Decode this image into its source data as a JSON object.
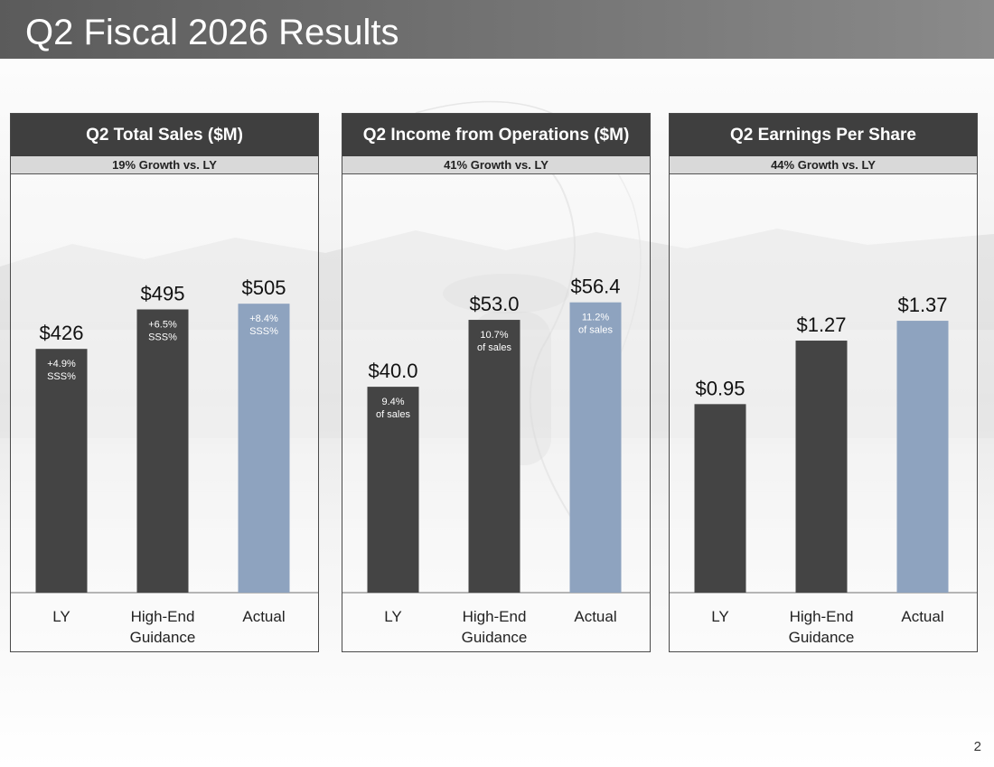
{
  "slide": {
    "title": "Q2 Fiscal 2026 Results",
    "page_number": "2"
  },
  "colors": {
    "dark_bar": "#444444",
    "actual_bar": "#8ea3bf",
    "header_bg": "#3f3f3f",
    "subheader_bg": "#d9d9d9"
  },
  "chart_data": [
    {
      "type": "bar",
      "title": "Q2 Total Sales ($M)",
      "subtitle": "19% Growth vs. LY",
      "categories": [
        [
          "LY"
        ],
        [
          "High-End",
          "Guidance"
        ],
        [
          "Actual"
        ]
      ],
      "values": [
        426,
        495,
        505
      ],
      "value_labels": [
        "$426",
        "$495",
        "$505"
      ],
      "bar_notes": [
        [
          "+4.9%",
          "SSS%"
        ],
        [
          "+6.5%",
          "SSS%"
        ],
        [
          "+8.4%",
          "SSS%"
        ]
      ],
      "highlight_index": 2,
      "ylim": [
        0,
        600
      ]
    },
    {
      "type": "bar",
      "title": "Q2 Income from Operations ($M)",
      "subtitle": "41% Growth vs. LY",
      "categories": [
        [
          "LY"
        ],
        [
          "High-End",
          "Guidance"
        ],
        [
          "Actual"
        ]
      ],
      "values": [
        40.0,
        53.0,
        56.4
      ],
      "value_labels": [
        "$40.0",
        "$53.0",
        "$56.4"
      ],
      "bar_notes": [
        [
          "9.4%",
          "of sales"
        ],
        [
          "10.7%",
          "of sales"
        ],
        [
          "11.2%",
          "of sales"
        ]
      ],
      "highlight_index": 2,
      "ylim": [
        0,
        66.7
      ]
    },
    {
      "type": "bar",
      "title": "Q2 Earnings Per Share",
      "subtitle": "44% Growth vs. LY",
      "categories": [
        [
          "LY"
        ],
        [
          "High-End",
          "Guidance"
        ],
        [
          "Actual"
        ]
      ],
      "values": [
        0.95,
        1.27,
        1.37
      ],
      "value_labels": [
        "$0.95",
        "$1.27",
        "$1.37"
      ],
      "bar_notes": [
        [],
        [],
        []
      ],
      "highlight_index": 2,
      "ylim": [
        0,
        1.73
      ]
    }
  ]
}
